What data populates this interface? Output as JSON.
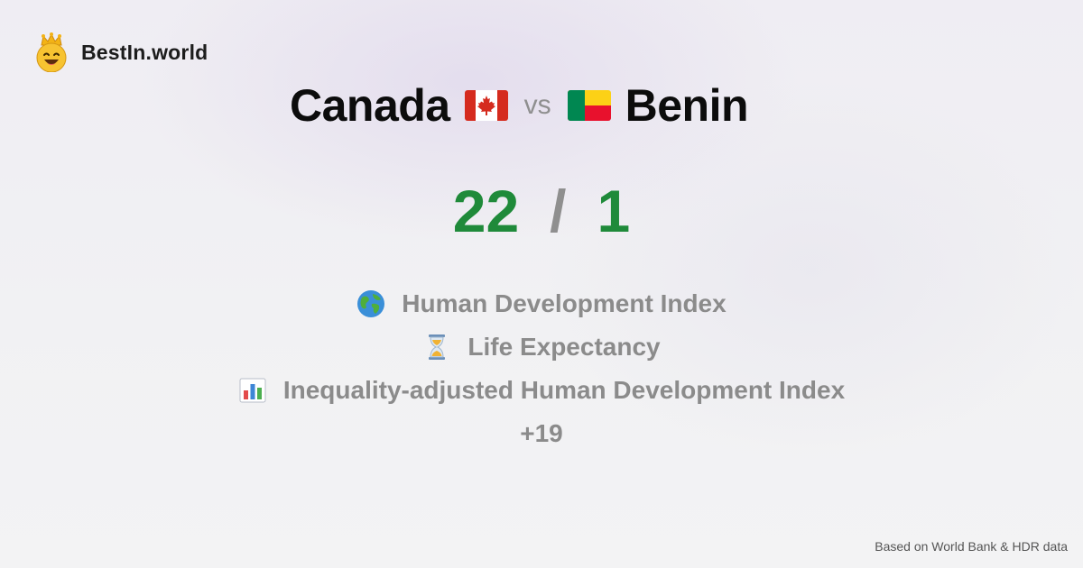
{
  "brand": {
    "name": "BestIn.world",
    "logo_icon": "crown-smiley-icon"
  },
  "comparison": {
    "left_country": "Canada",
    "left_flag_icon": "canada-flag-icon",
    "vs_label": "vs",
    "right_country": "Benin",
    "right_flag_icon": "benin-flag-icon"
  },
  "score": {
    "left": "22",
    "separator": "/",
    "right": "1",
    "color": "#1f8a3a"
  },
  "metrics": [
    {
      "icon": "globe-icon",
      "label": "Human Development Index"
    },
    {
      "icon": "hourglass-icon",
      "label": "Life Expectancy"
    },
    {
      "icon": "bar-chart-icon",
      "label": "Inequality-adjusted Human Development Index"
    }
  ],
  "more_label": "+19",
  "footer": {
    "source": "Based on World Bank & HDR data"
  }
}
